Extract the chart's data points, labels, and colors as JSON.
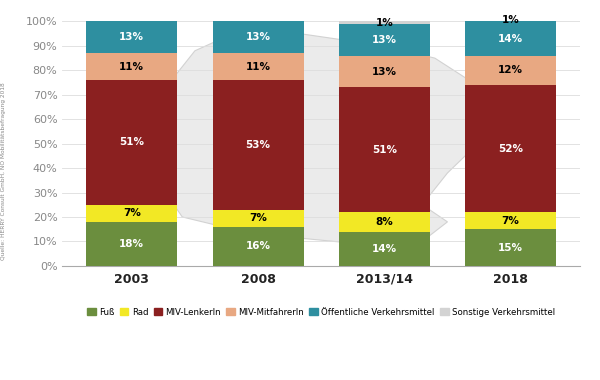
{
  "categories": [
    "2003",
    "2008",
    "2013/14",
    "2018"
  ],
  "series": {
    "Fuß": [
      18,
      16,
      14,
      15
    ],
    "Rad": [
      7,
      7,
      8,
      7
    ],
    "MIV-LenkerIn": [
      51,
      53,
      51,
      52
    ],
    "MIV-MitfahrerIn": [
      11,
      11,
      13,
      12
    ],
    "Öffentliche Verkehrsmittel": [
      13,
      13,
      13,
      14
    ],
    "Sonstige Verkehrsmittel": [
      0,
      0,
      1,
      1
    ]
  },
  "colors": {
    "Fuß": "#6b8e3e",
    "Rad": "#f2e825",
    "MIV-LenkerIn": "#8b2020",
    "MIV-MitfahrerIn": "#e8a882",
    "Öffentliche Verkehrsmittel": "#2e8fa0",
    "Sonstige Verkehrsmittel": "#d3d3d3"
  },
  "text_colors": {
    "Fuß": "white",
    "Rad": "black",
    "MIV-LenkerIn": "white",
    "MIV-MitfahrerIn": "black",
    "Öffentliche Verkehrsmittel": "white",
    "Sonstige Verkehrsmittel": "black"
  },
  "yticks": [
    0,
    10,
    20,
    30,
    40,
    50,
    60,
    70,
    80,
    90,
    100
  ],
  "ytick_labels": [
    "0%",
    "10%",
    "20%",
    "30%",
    "40%",
    "50%",
    "60%",
    "70%",
    "80%",
    "90%",
    "100%"
  ],
  "source_text": "Quelle: HERRY Consult GmbH, NÖ Mobilitätsbefragung 2018",
  "background_color": "#ffffff",
  "bar_width": 0.72
}
